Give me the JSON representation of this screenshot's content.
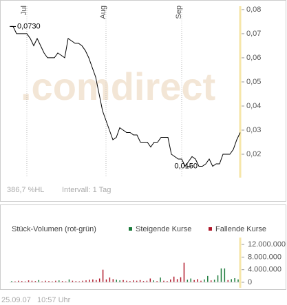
{
  "chart_data": [
    {
      "type": "line",
      "watermark": ".comdirect",
      "categories": [
        null,
        null,
        null,
        null,
        null,
        "Jul",
        null,
        null,
        null,
        null,
        null,
        null,
        null,
        null,
        null,
        null,
        null,
        null,
        null,
        null,
        null,
        null,
        null,
        null,
        null,
        null,
        null,
        null,
        "Aug",
        null,
        null,
        null,
        null,
        null,
        null,
        null,
        null,
        null,
        null,
        null,
        null,
        null,
        null,
        null,
        null,
        null,
        null,
        null,
        null,
        null,
        "Sep",
        null,
        null,
        null,
        null,
        null,
        null,
        null,
        null,
        null,
        null,
        null,
        null,
        null,
        null,
        null,
        null,
        null
      ],
      "series": [
        {
          "color": "#000000",
          "values": [
            0.073,
            0.073,
            0.07,
            0.07,
            0.07,
            0.07,
            0.068,
            0.065,
            0.068,
            0.065,
            0.062,
            0.06,
            0.06,
            0.06,
            0.062,
            0.061,
            0.06,
            0.068,
            0.067,
            0.066,
            0.066,
            0.065,
            0.063,
            0.06,
            0.056,
            0.052,
            0.045,
            0.038,
            0.034,
            0.03,
            0.026,
            0.027,
            0.031,
            0.03,
            0.029,
            0.029,
            0.028,
            0.028,
            0.025,
            0.025,
            0.025,
            0.023,
            0.025,
            0.025,
            0.027,
            0.027,
            0.027,
            0.02,
            0.019,
            0.018,
            0.018,
            0.015,
            0.017,
            0.019,
            0.018,
            0.015,
            0.015,
            0.016,
            0.018,
            0.015,
            0.016,
            0.016,
            0.02,
            0.02,
            0.02,
            0.022,
            0.026,
            0.029
          ]
        }
      ],
      "annotations": [
        {
          "label": "0,0730",
          "value": 0.073
        },
        {
          "label": "0,0150",
          "value": 0.015
        }
      ],
      "ylim": [
        0.0103,
        0.0814
      ],
      "yticks": [
        {
          "value": 0.02,
          "label": "0,02"
        },
        {
          "value": 0.03,
          "label": "0,03"
        },
        {
          "value": 0.04,
          "label": "0,04"
        },
        {
          "value": 0.05,
          "label": "0,05"
        },
        {
          "value": 0.06,
          "label": "0,06"
        },
        {
          "value": 0.07,
          "label": "0,07"
        },
        {
          "value": 0.08,
          "label": "0,08"
        }
      ],
      "range_label": "386,7 %HL",
      "interval_label": "Intervall: 1 Tag"
    },
    {
      "type": "bar",
      "title": "Stück-Volumen (rot-grün)",
      "series": [
        {
          "name": "Steigende Kurse",
          "color": "#1a7a3a",
          "values": [
            400000,
            null,
            null,
            null,
            null,
            null,
            null,
            null,
            700000,
            null,
            null,
            null,
            null,
            null,
            600000,
            null,
            null,
            900000,
            null,
            null,
            null,
            null,
            null,
            null,
            null,
            null,
            null,
            null,
            null,
            null,
            null,
            800000,
            600000,
            null,
            null,
            null,
            null,
            null,
            null,
            null,
            null,
            null,
            600000,
            null,
            1500000,
            null,
            null,
            null,
            null,
            null,
            null,
            null,
            800000,
            1200000,
            null,
            null,
            null,
            900000,
            2000000,
            null,
            800000,
            2200000,
            4400000,
            4400000,
            null,
            1000000,
            1300000,
            900000
          ]
        },
        {
          "name": "Fallende Kurse",
          "color": "#b0182a",
          "values": [
            null,
            300000,
            500000,
            400000,
            300000,
            600000,
            500000,
            400000,
            null,
            300000,
            500000,
            400000,
            300000,
            500000,
            null,
            400000,
            300000,
            null,
            500000,
            400000,
            300000,
            500000,
            600000,
            800000,
            900000,
            700000,
            1200000,
            4000000,
            900000,
            1500000,
            1000000,
            null,
            null,
            700000,
            500000,
            400000,
            600000,
            500000,
            700000,
            400000,
            500000,
            1200000,
            null,
            400000,
            null,
            500000,
            400000,
            900000,
            1800000,
            1000000,
            1600000,
            6200000,
            null,
            null,
            700000,
            1000000,
            500000,
            null,
            null,
            600000,
            null,
            null,
            null,
            null,
            700000,
            null,
            null,
            null
          ]
        }
      ],
      "ylim": [
        0,
        14200000
      ],
      "yticks": [
        0,
        {
          "value": 4000000,
          "label": "4.000.000"
        },
        {
          "value": 8000000,
          "label": "8.000.000"
        },
        {
          "value": 12000000,
          "label": "12.000.000"
        }
      ],
      "timestamp": "25.09.07   10:57 Uhr"
    }
  ]
}
